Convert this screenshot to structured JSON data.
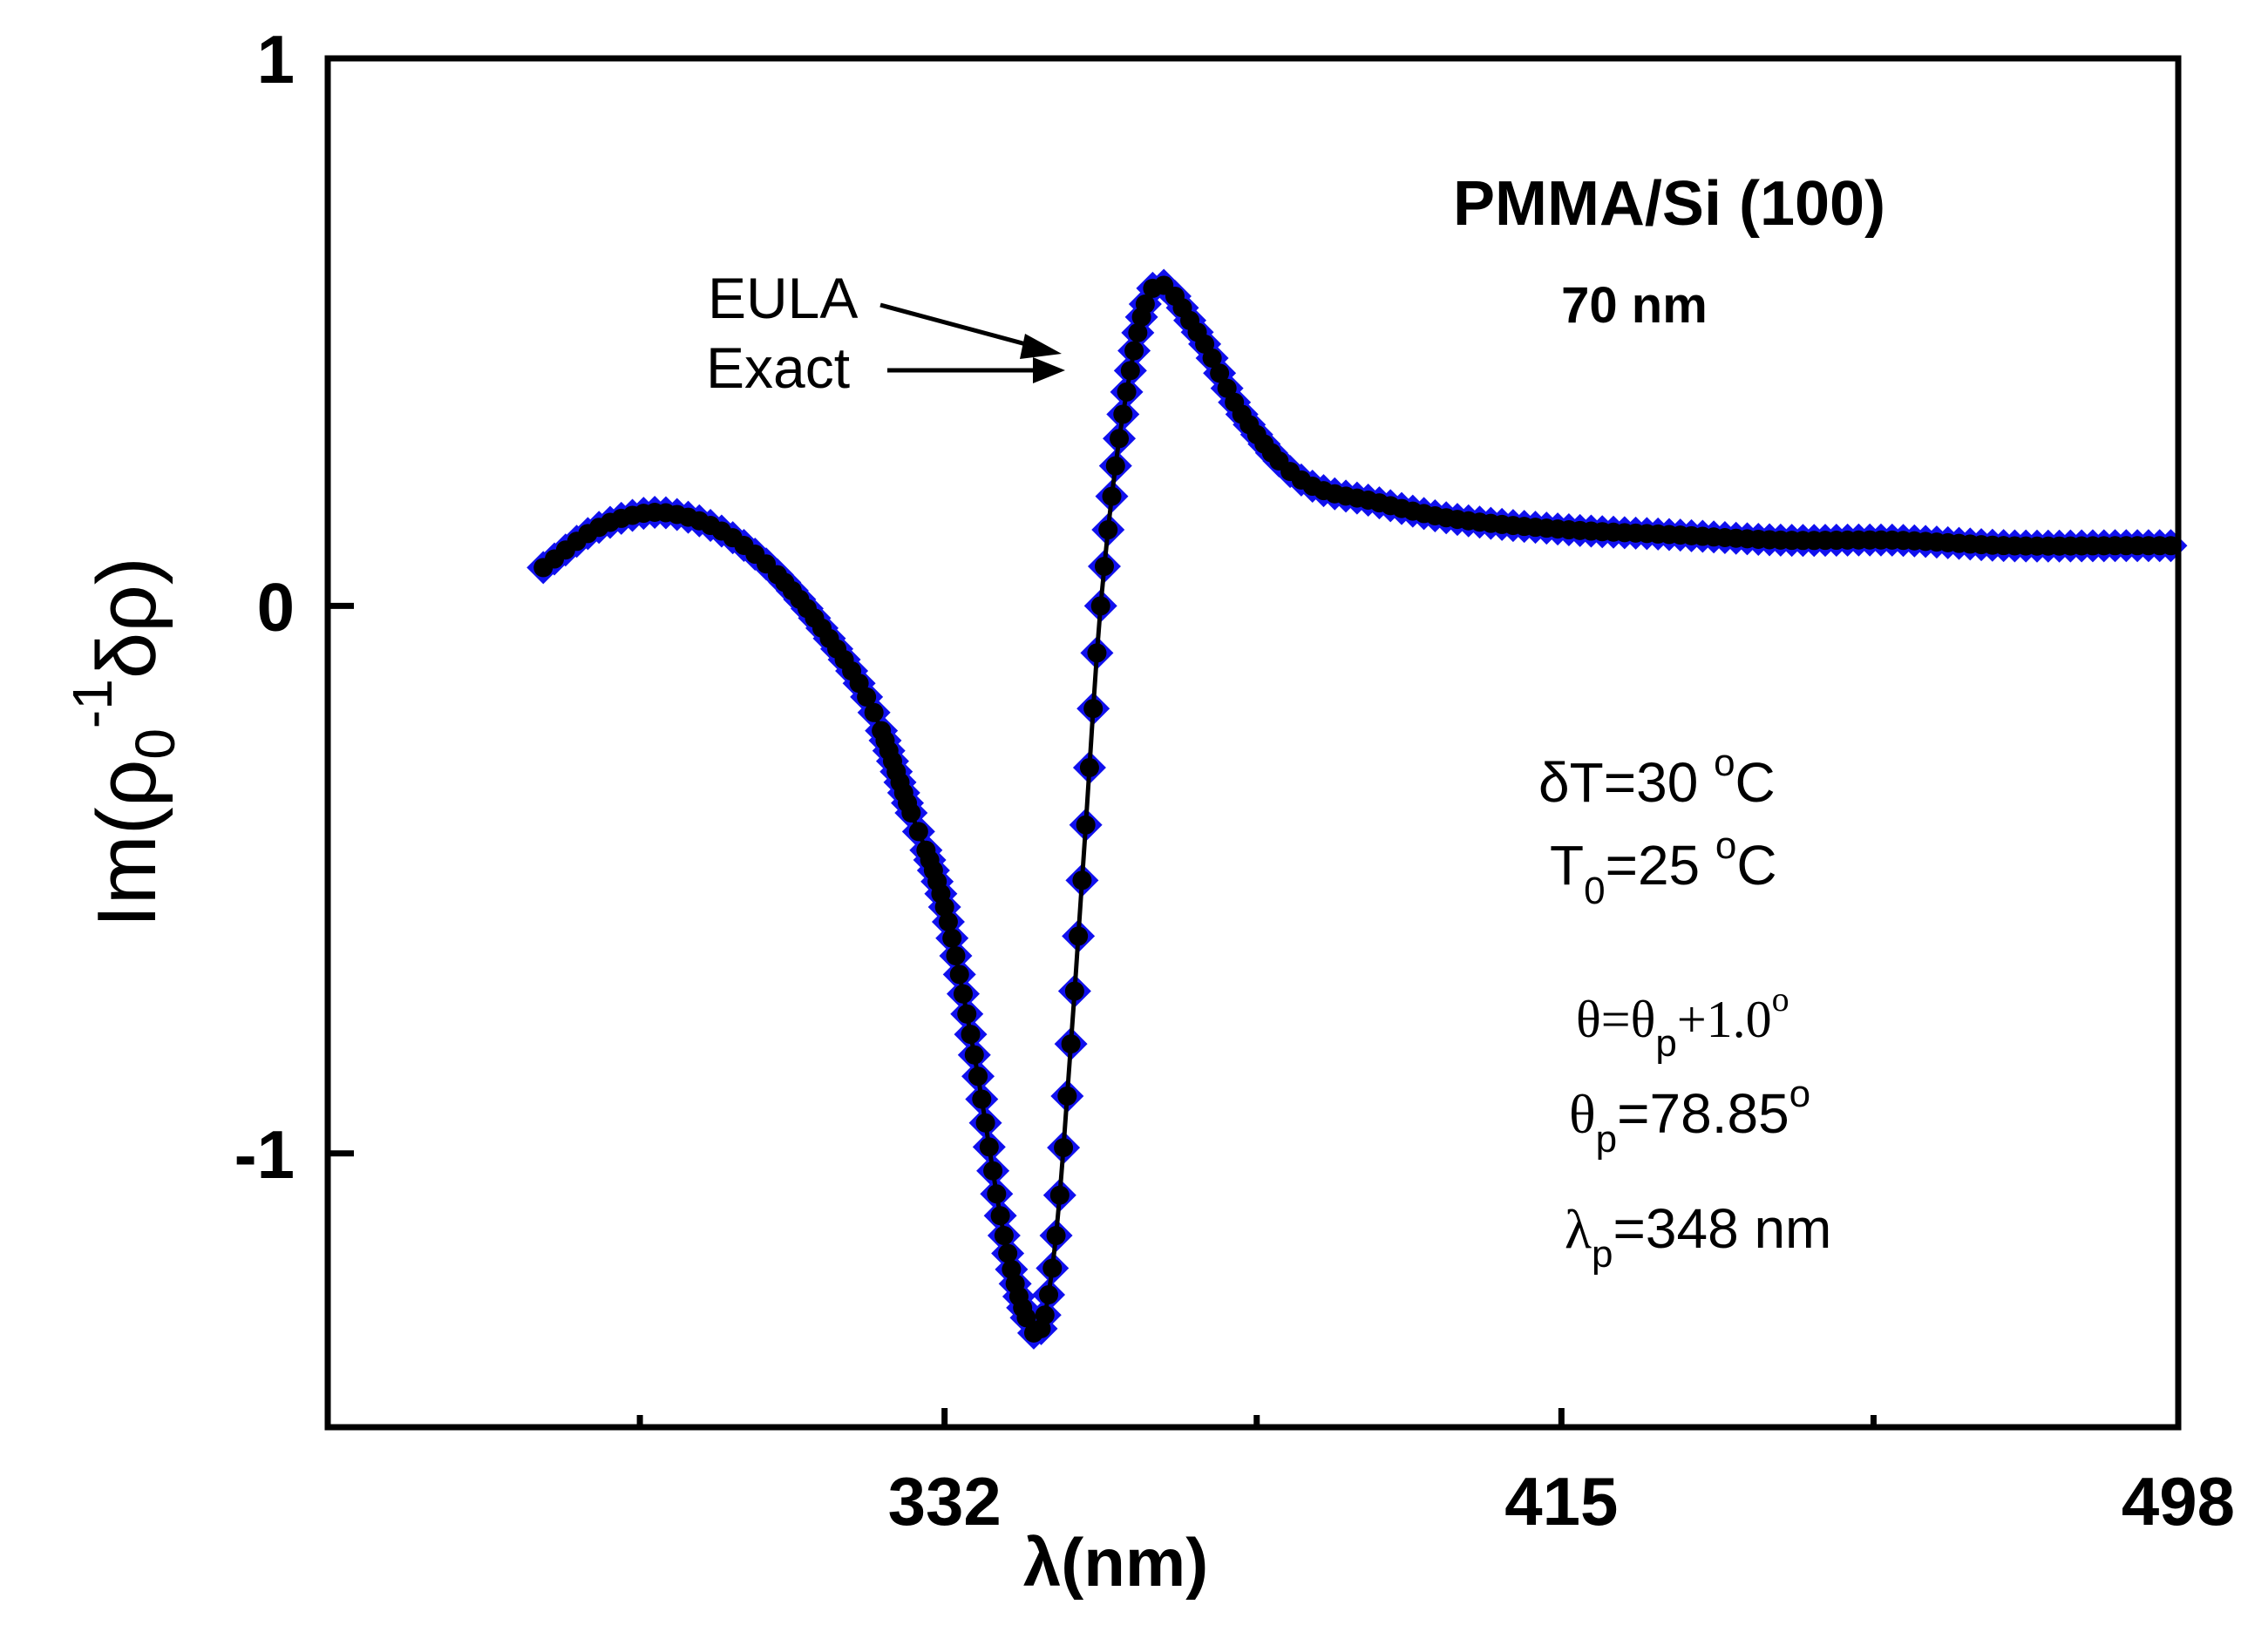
{
  "colors": {
    "eula": "#1010ee",
    "exact": "#000000",
    "axis": "#000000"
  },
  "chart_data": {
    "type": "scatter",
    "title": "",
    "xlabel": {
      "sym": "λ",
      "rest": "(nm)"
    },
    "ylabel": {
      "pre": "Im(ρ",
      "sub": "0",
      "sup": "-1",
      "post": "δρ)"
    },
    "xlim": [
      249,
      498
    ],
    "ylim": [
      -1.5,
      1.0
    ],
    "x_ticks": [
      {
        "value": 332,
        "label": "332"
      },
      {
        "value": 415,
        "label": "415"
      },
      {
        "value": 498,
        "label": "498"
      }
    ],
    "x_minor_ticks": [
      291,
      374,
      457
    ],
    "y_ticks": [
      {
        "value": 1,
        "label": "1"
      },
      {
        "value": 0,
        "label": "0"
      },
      {
        "value": -1,
        "label": "-1"
      }
    ],
    "series": [
      {
        "name": "EULA",
        "marker": "diamond",
        "color": "#1010ee"
      },
      {
        "name": "Exact",
        "marker": "circle-line",
        "color": "#000000"
      }
    ],
    "x": [
      278,
      285,
      292,
      298,
      304,
      310,
      316,
      322,
      327,
      332,
      336,
      340,
      343,
      345,
      347,
      349,
      351,
      353,
      356,
      360,
      366,
      372,
      380,
      390,
      400,
      415,
      430,
      445,
      460,
      475,
      490,
      498
    ],
    "y": [
      0.07,
      0.14,
      0.17,
      0.16,
      0.12,
      0.05,
      -0.05,
      -0.18,
      -0.36,
      -0.55,
      -0.82,
      -1.15,
      -1.3,
      -1.32,
      -1.15,
      -0.8,
      -0.4,
      0.0,
      0.35,
      0.58,
      0.5,
      0.35,
      0.23,
      0.19,
      0.16,
      0.14,
      0.13,
      0.12,
      0.12,
      0.11,
      0.11,
      0.11
    ],
    "annotations": {
      "title": "PMMA/Si (100)",
      "thickness": "70 nm",
      "eula_label": "EULA",
      "exact_label": "Exact",
      "dT": {
        "pre": "δT=30 ",
        "sup": "o",
        "post": "C"
      },
      "T0": {
        "pre": "T",
        "sub": "0",
        "mid": "=25 ",
        "sup": "o",
        "post": "C"
      },
      "theta": {
        "pre": "θ=θ",
        "sub": "p",
        "post": "+1.0",
        "sup": "o"
      },
      "theta_p": {
        "pre": "θ",
        "sub": "p",
        "post": "=78.85",
        "sup": "o"
      },
      "lambda_p": {
        "pre": "λ",
        "sub": "p",
        "post": "=348 nm"
      }
    }
  }
}
